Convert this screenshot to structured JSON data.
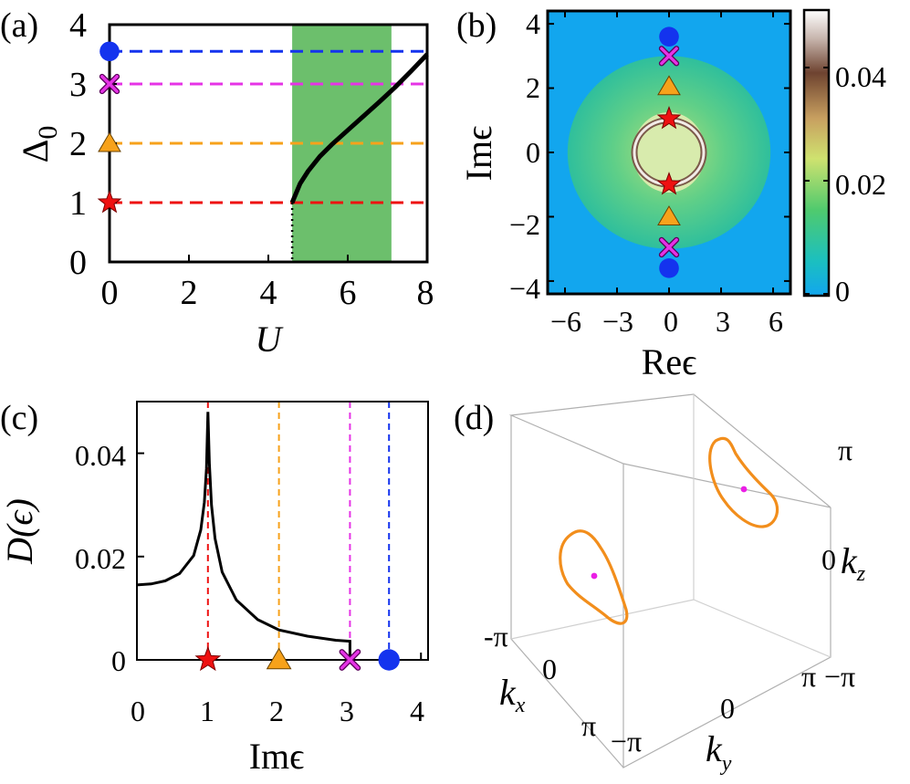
{
  "figure": {
    "markers": [
      {
        "name": "red star",
        "shape": "star",
        "color": "#ee1111",
        "value": 1
      },
      {
        "name": "orange triangle",
        "shape": "triangle",
        "color": "#f7a21b",
        "value": 2
      },
      {
        "name": "magenta cross",
        "shape": "cross",
        "color": "#e633e6",
        "value": 3
      },
      {
        "name": "blue circle",
        "shape": "circle",
        "color": "#1433ee",
        "value": 3.55
      }
    ]
  },
  "chart_data": [
    {
      "panel": "(a)",
      "type": "line",
      "xlabel": "U",
      "ylabel": "Δ",
      "ylabel_sub": "0",
      "xlim": [
        0,
        8
      ],
      "ylim": [
        0,
        4
      ],
      "xticks": [
        "0",
        "2",
        "4",
        "6",
        "8"
      ],
      "yticks": [
        "0",
        "1",
        "2",
        "3",
        "4"
      ],
      "shaded_region": {
        "x0": 4.6,
        "x1": 7.1,
        "color": "#5cb85c"
      },
      "onset": {
        "x": 4.6,
        "y": 1.0
      },
      "series": [
        {
          "name": "gap",
          "x": [
            4.6,
            4.8,
            5.0,
            5.3,
            5.6,
            6.0,
            6.4,
            6.8,
            7.2,
            7.6,
            8.0
          ],
          "y": [
            1.0,
            1.32,
            1.53,
            1.78,
            1.98,
            2.22,
            2.46,
            2.7,
            2.95,
            3.22,
            3.5
          ]
        }
      ],
      "hlines": [
        1,
        2,
        3,
        3.55
      ]
    },
    {
      "panel": "(b)",
      "type": "heatmap",
      "xlabel": "Reϵ",
      "ylabel": "Imϵ",
      "xlim": [
        -7,
        7
      ],
      "ylim": [
        -4.4,
        4.4
      ],
      "xticks": [
        "−6",
        "−3",
        "0",
        "3",
        "6"
      ],
      "yticks": [
        "−4",
        "−2",
        "0",
        "2",
        "4"
      ],
      "colorbar": {
        "min": 0,
        "max": 0.05,
        "ticks": [
          "0",
          "0.02",
          "0.04"
        ],
        "tick_values": [
          0,
          0.02,
          0.04
        ]
      },
      "ring_radius": 1.0,
      "outer_radius_re": 6.5,
      "outer_radius_im": 3.0,
      "marker_points": [
        {
          "marker": "star",
          "re": 0,
          "im": 1.05
        },
        {
          "marker": "star",
          "re": 0,
          "im": -1.0
        },
        {
          "marker": "triangle",
          "re": 0,
          "im": 2.05
        },
        {
          "marker": "triangle",
          "re": 0,
          "im": -2.0
        },
        {
          "marker": "cross",
          "re": 0,
          "im": 3.0
        },
        {
          "marker": "cross",
          "re": 0,
          "im": -2.95
        },
        {
          "marker": "circle",
          "re": 0,
          "im": 3.6
        },
        {
          "marker": "circle",
          "re": 0,
          "im": -3.6
        }
      ]
    },
    {
      "panel": "(c)",
      "type": "line",
      "xlabel": "Imϵ",
      "ylabel": "D(ϵ)",
      "xlim": [
        0,
        4.1
      ],
      "ylim": [
        0,
        0.05
      ],
      "xticks": [
        "0",
        "1",
        "2",
        "3",
        "4"
      ],
      "yticks": [
        "0",
        "0.02",
        "0.04"
      ],
      "series": [
        {
          "name": "D",
          "x": [
            0,
            0.2,
            0.4,
            0.6,
            0.8,
            0.9,
            0.95,
            0.98,
            1.0,
            1.02,
            1.05,
            1.1,
            1.2,
            1.4,
            1.7,
            2.0,
            2.4,
            2.8,
            3.0
          ],
          "y": [
            0.0145,
            0.0147,
            0.0153,
            0.0167,
            0.0202,
            0.0252,
            0.0305,
            0.037,
            0.048,
            0.038,
            0.03,
            0.0235,
            0.017,
            0.0116,
            0.0078,
            0.0058,
            0.0046,
            0.0038,
            0.0036
          ]
        }
      ],
      "vlines": [
        1,
        2,
        3,
        3.55
      ]
    },
    {
      "panel": "(d)",
      "type": "scatter",
      "note": "3D Brillouin zone with two orange loops and magenta centre points",
      "xlabel": "k",
      "xlabel_sub": "x",
      "ylabel": "k",
      "ylabel_sub": "y",
      "zlabel": "k",
      "zlabel_sub": "z",
      "kx_ticks": [
        "-π",
        "0",
        "π"
      ],
      "ky_ticks": [
        "−π",
        "0",
        "π"
      ],
      "kz_ticks": [
        "−π",
        "0",
        "π"
      ]
    }
  ]
}
